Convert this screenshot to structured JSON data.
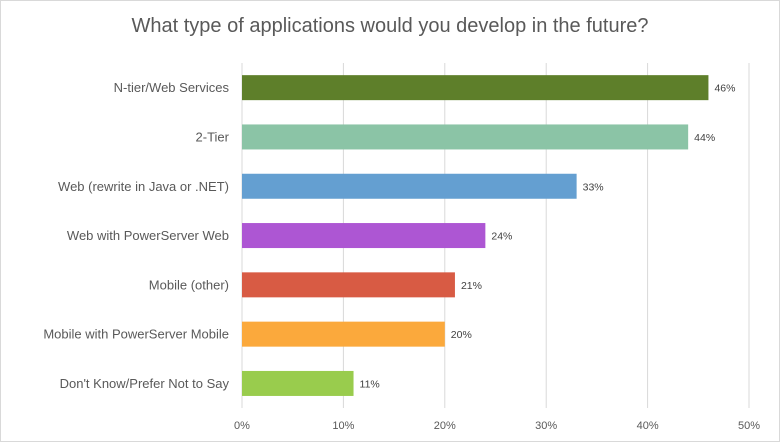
{
  "chart_data": {
    "type": "bar",
    "orientation": "horizontal",
    "title": "What type of applications would you develop in the future?",
    "categories": [
      "N-tier/Web Services",
      "2-Tier",
      "Web (rewrite in Java or .NET)",
      "Web with PowerServer Web",
      "Mobile (other)",
      "Mobile with PowerServer Mobile",
      "Don't Know/Prefer Not to Say"
    ],
    "values": [
      46,
      44,
      33,
      24,
      21,
      20,
      11
    ],
    "data_labels": [
      "46%",
      "44%",
      "33%",
      "24%",
      "21%",
      "20%",
      "11%"
    ],
    "colors": [
      "#5e7f2a",
      "#8bc4a6",
      "#649fd1",
      "#ad56d3",
      "#d85b44",
      "#fba93c",
      "#99cc4d"
    ],
    "xlim": [
      0,
      50
    ],
    "x_ticks": [
      0,
      10,
      20,
      30,
      40,
      50
    ],
    "x_tick_labels": [
      "0%",
      "10%",
      "20%",
      "30%",
      "40%",
      "50%"
    ],
    "grid": "vertical",
    "legend": "none",
    "xlabel": "",
    "ylabel": ""
  }
}
